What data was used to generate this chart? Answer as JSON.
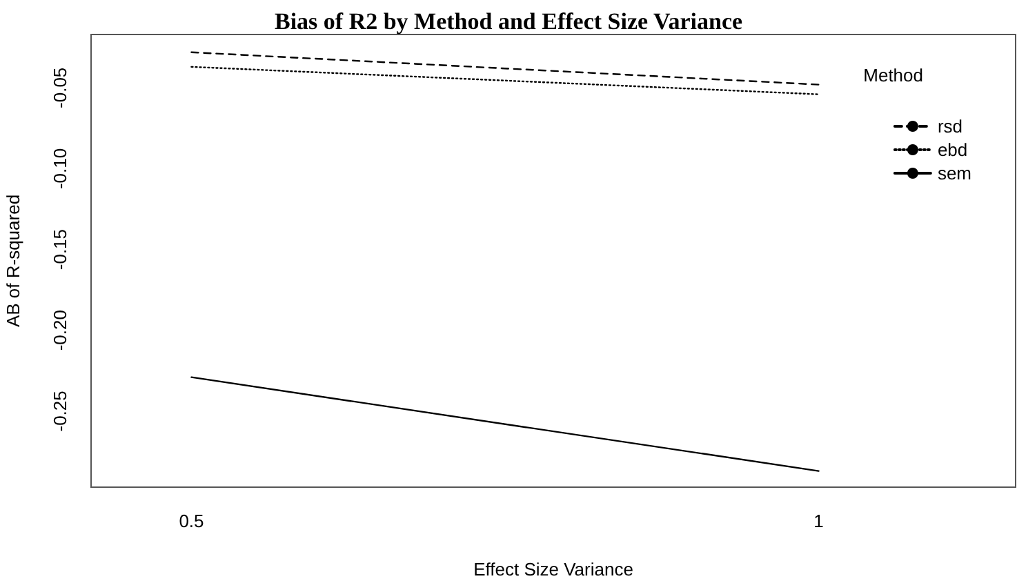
{
  "chart_data": {
    "type": "line",
    "title": "Bias of R2 by Method and Effect Size Variance",
    "xlabel": "Effect Size Variance",
    "ylabel": "AB of R-squared",
    "legend_title": "Method",
    "x": [
      0.5,
      1
    ],
    "xlim": [
      0.42,
      1.157
    ],
    "xticks": [
      0.5,
      1
    ],
    "ylim": [
      -0.297,
      -0.017
    ],
    "yticks": [
      {
        "value": -0.05,
        "label": "-0.05"
      },
      {
        "value": -0.1,
        "label": "-0.10"
      },
      {
        "value": -0.15,
        "label": "-0.15"
      },
      {
        "value": -0.2,
        "label": "-0.20"
      },
      {
        "value": -0.25,
        "label": "-0.25"
      }
    ],
    "series": [
      {
        "name": "rsd",
        "color": "#000000",
        "line_style": "dashed",
        "values": [
          -0.028,
          -0.048
        ]
      },
      {
        "name": "ebd",
        "color": "#000000",
        "line_style": "dotted",
        "values": [
          -0.037,
          -0.054
        ]
      },
      {
        "name": "sem",
        "color": "#000000",
        "line_style": "solid",
        "values": [
          -0.229,
          -0.287
        ]
      }
    ],
    "grid": false,
    "legend": "top right",
    "marker": "none"
  }
}
